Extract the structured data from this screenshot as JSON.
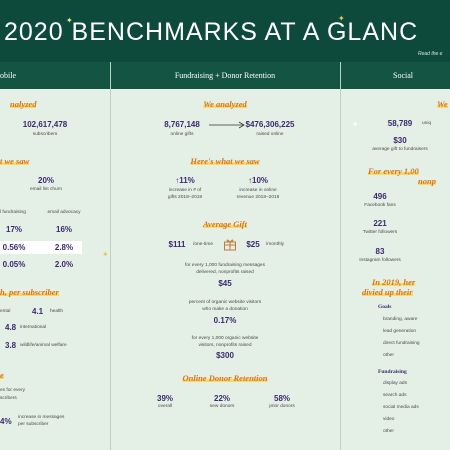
{
  "header": {
    "title": "2020 BENCHMARKS AT A GLANC",
    "link": "Read the e"
  },
  "columns": [
    {
      "title": "obile",
      "items": [
        "nalyzed",
        "102,617,478",
        "subscribers",
        "t we saw",
        "20%",
        "email list churn",
        "l fundraising",
        "email advocacy",
        "17%",
        "16%",
        "0.56%",
        "2.8%",
        "0.05%",
        "2.0%",
        "h, per subscriber",
        "ental",
        "4.1",
        "health",
        "4.8",
        "international",
        "3.8",
        "wildlife/animal welfare",
        "e",
        "es for every",
        "scribers",
        "4%",
        "increase in messages",
        "per subscriber"
      ]
    },
    {
      "title": "Fundraising + Donor Retention",
      "items": [
        "We analyzed",
        "8,767,148",
        "online gifts",
        "$476,306,225",
        "raised online",
        "Here's what we saw",
        "↑11%",
        "increase in # of",
        "gifts 2018–2019",
        "↑10%",
        "increase in online",
        "revenue 2018–2019",
        "Average Gift",
        "$111",
        "/one-time",
        "$25",
        "/monthly",
        "for every 1,000 fundraising messages",
        "delivered, nonprofits raised",
        "$45",
        "percent of organic website visitors",
        "who make a donation",
        "0.17%",
        "for every 1,000 organic website",
        "visitors, nonprofits raised",
        "$300",
        "Online Donor Retention",
        "39%",
        "overall",
        "22%",
        "new donors",
        "58%",
        "prior donors"
      ]
    },
    {
      "title": "Social",
      "items": [
        "We",
        "58,789",
        "uniq",
        "$30",
        "average gift to fundraisers",
        "For every 1,00",
        "nonp",
        "496",
        "Facebook fans",
        "221",
        "Twitter followers",
        "83",
        "Instagram followers",
        "In 2019, her",
        "divied up their",
        "Goals",
        "branding, aware",
        "lead generation",
        "direct fundraising",
        "other",
        "Fundraising",
        "display ads",
        "search ads",
        "social media ads",
        "video",
        "other"
      ]
    }
  ]
}
